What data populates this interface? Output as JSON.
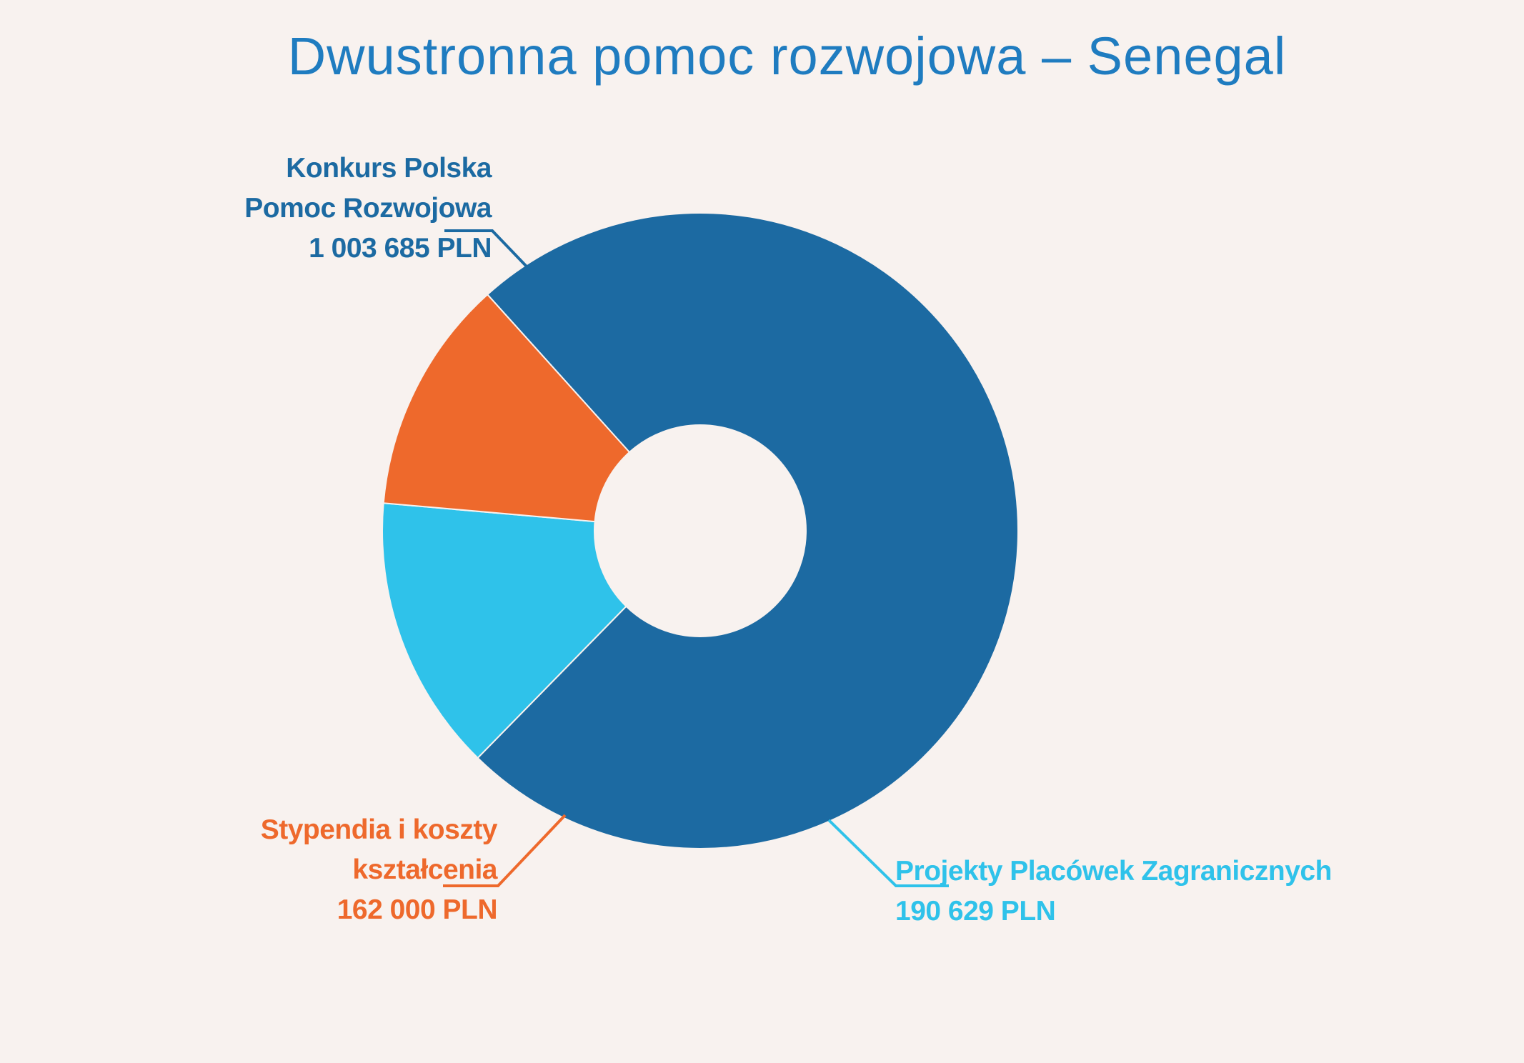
{
  "title": "Dwustronna pomoc rozwojowa – Senegal",
  "colors": {
    "title": "#1f7cc0",
    "background": "#f8f2ef"
  },
  "chart_data": {
    "type": "pie",
    "variant": "donut",
    "title": "Dwustronna pomoc rozwojowa – Senegal",
    "unit": "PLN",
    "slices": [
      {
        "name_lines": [
          "Konkurs Polska",
          "Pomoc Rozwojowa"
        ],
        "value": 1003685,
        "value_label": "1 003 685 PLN",
        "color": "#1c6aa2"
      },
      {
        "name_lines": [
          "Projekty Placówek Zagranicznych"
        ],
        "value": 190629,
        "value_label": "190 629 PLN",
        "color": "#2fc2ea"
      },
      {
        "name_lines": [
          "Stypendia i koszty",
          "kształcenia"
        ],
        "value": 162000,
        "value_label": "162 000 PLN",
        "color": "#ee692c"
      }
    ]
  }
}
